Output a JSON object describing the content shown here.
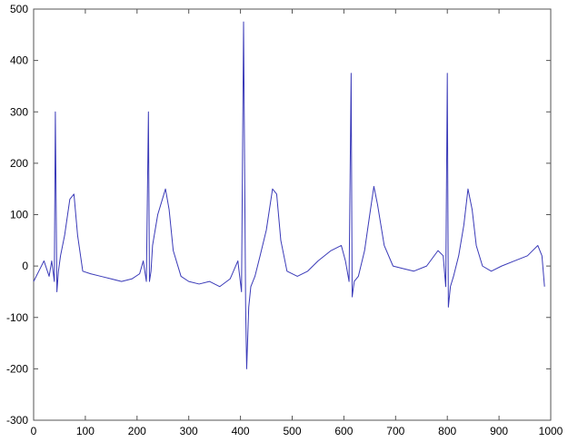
{
  "chart_data": {
    "type": "line",
    "title": "",
    "xlabel": "",
    "ylabel": "",
    "xlim": [
      0,
      1000
    ],
    "ylim": [
      -300,
      500
    ],
    "x_ticks": [
      0,
      100,
      200,
      300,
      400,
      500,
      600,
      700,
      800,
      900,
      1000
    ],
    "y_ticks": [
      -300,
      -200,
      -100,
      0,
      100,
      200,
      300,
      400,
      500
    ],
    "x_tick_labels": [
      "0",
      "100",
      "200",
      "300",
      "400",
      "500",
      "600",
      "700",
      "800",
      "900",
      "1000"
    ],
    "y_tick_labels": [
      "-300",
      "-200",
      "-100",
      "0",
      "100",
      "200",
      "300",
      "400",
      "500"
    ],
    "grid": false,
    "series": [
      {
        "color": "#3a3ab8",
        "x": [
          0,
          10,
          20,
          30,
          35,
          40,
          42,
          45,
          48,
          52,
          60,
          70,
          78,
          85,
          95,
          110,
          130,
          150,
          170,
          190,
          205,
          212,
          218,
          222,
          224,
          227,
          230,
          240,
          255,
          262,
          270,
          285,
          300,
          320,
          340,
          360,
          380,
          395,
          402,
          406,
          410,
          412,
          416,
          420,
          428,
          438,
          450,
          462,
          470,
          478,
          490,
          510,
          530,
          550,
          575,
          595,
          603,
          610,
          614,
          616,
          620,
          628,
          640,
          650,
          658,
          665,
          678,
          695,
          715,
          735,
          760,
          782,
          792,
          797,
          800,
          802,
          806,
          812,
          822,
          832,
          840,
          848,
          856,
          868,
          885,
          905,
          930,
          955,
          975,
          983,
          988
        ],
        "y": [
          -30,
          -10,
          10,
          -20,
          10,
          -30,
          300,
          -50,
          -10,
          20,
          60,
          130,
          140,
          60,
          -10,
          -15,
          -20,
          -25,
          -30,
          -25,
          -15,
          10,
          -30,
          300,
          -30,
          -10,
          40,
          100,
          150,
          110,
          30,
          -20,
          -30,
          -35,
          -30,
          -40,
          -25,
          10,
          -50,
          475,
          -80,
          -200,
          -80,
          -40,
          -20,
          20,
          70,
          150,
          140,
          50,
          -10,
          -20,
          -10,
          10,
          30,
          40,
          10,
          -30,
          375,
          -60,
          -30,
          -20,
          30,
          100,
          155,
          120,
          40,
          0,
          -5,
          -10,
          0,
          30,
          20,
          -40,
          375,
          -80,
          -40,
          -20,
          20,
          80,
          150,
          110,
          40,
          0,
          -10,
          0,
          10,
          20,
          40,
          20,
          -40
        ]
      }
    ]
  }
}
